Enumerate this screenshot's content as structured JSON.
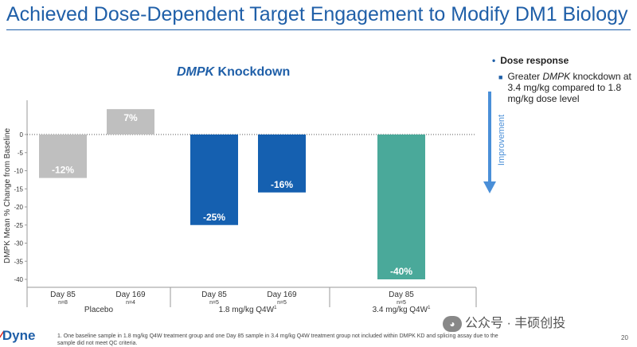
{
  "slide": {
    "title": "Achieved Dose-Dependent Target Engagement to Modify DM1 Biology",
    "page_number": "20",
    "footnote": "1. One baseline sample in 1.8 mg/kg Q4W treatment group and one Day 85 sample in 3.4 mg/kg Q4W treatment group not included within DMPK KD and splicing assay due to the sample did not meet QC criteria.",
    "logo_text": "Dyne",
    "watermark": "公众号 · 丰硕创投"
  },
  "chart_title": {
    "italic": "DMPK",
    "rest": " Knockdown"
  },
  "side_note": {
    "bullet": "Dose response",
    "sub_prefix": "Greater ",
    "sub_italic": "DMPK",
    "sub_rest": " knockdown at 3.4 mg/kg compared to 1.8 mg/kg dose level"
  },
  "improvement_label": "Improvement",
  "chart_data": {
    "type": "bar",
    "ylabel": "DMPK Mean % Change from Baseline",
    "ylim": [
      -42,
      8
    ],
    "yticks": [
      0,
      -5,
      -10,
      -15,
      -20,
      -25,
      -30,
      -35,
      -40
    ],
    "bars": [
      {
        "category": "Day 85",
        "n": "n=8",
        "group": "Placebo",
        "value": -12,
        "label": "-12%",
        "color": "#bfbfbf"
      },
      {
        "category": "Day 169",
        "n": "n=4",
        "group": "Placebo",
        "value": 7,
        "label": "7%",
        "color": "#bfbfbf"
      },
      {
        "category": "Day 85",
        "n": "n=5",
        "group": "1.8 mg/kg Q4W",
        "value": -25,
        "label": "-25%",
        "color": "#1560b0"
      },
      {
        "category": "Day 169",
        "n": "n=5",
        "group": "1.8 mg/kg Q4W",
        "value": -16,
        "label": "-16%",
        "color": "#1560b0"
      },
      {
        "category": "Day 85",
        "n": "n=5",
        "group": "3.4 mg/kg Q4W",
        "value": -40,
        "label": "-40%",
        "color": "#4aa99a"
      }
    ],
    "groups": [
      {
        "name": "Placebo",
        "sup": ""
      },
      {
        "name": "1.8 mg/kg Q4W",
        "sup": "1"
      },
      {
        "name": "3.4 mg/kg Q4W",
        "sup": "1"
      }
    ]
  }
}
